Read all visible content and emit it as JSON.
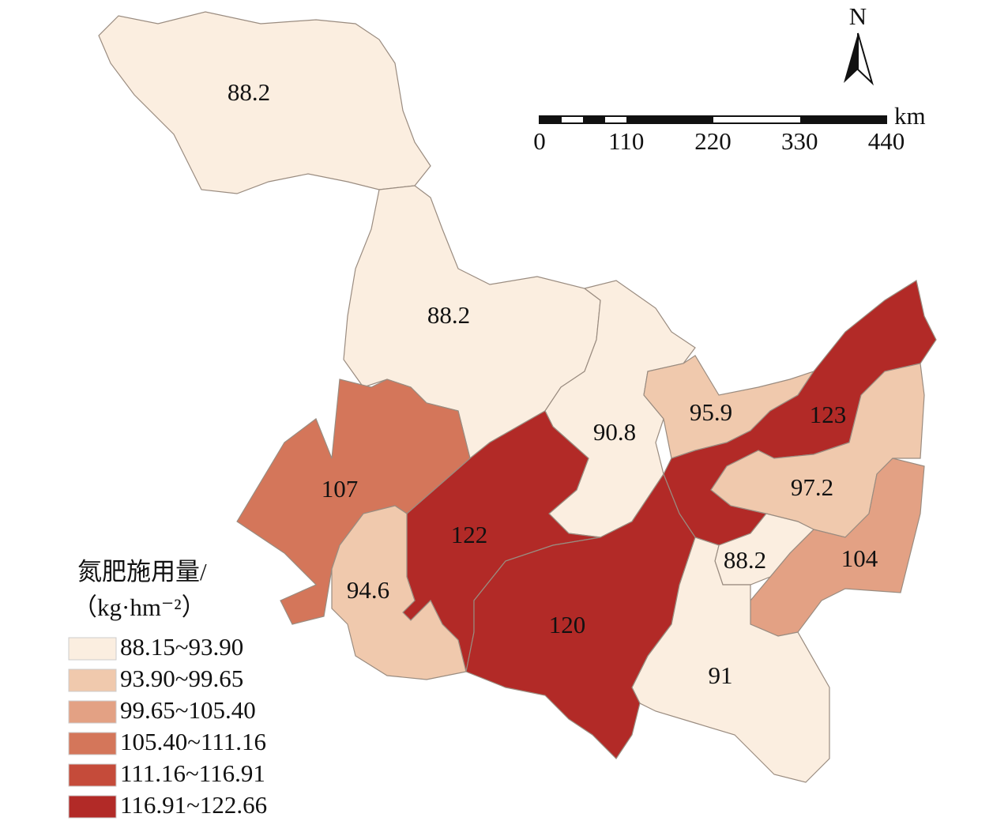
{
  "north_arrow": "N",
  "scale_bar": {
    "unit": "km",
    "ticks": [
      0,
      110,
      220,
      330,
      440
    ]
  },
  "legend": {
    "title": "氮肥施用量/",
    "unit": "（kg·hm⁻²）",
    "items": [
      {
        "label": "88.15~93.90",
        "color": "#fbeee0"
      },
      {
        "label": "93.90~99.65",
        "color": "#f0c9ad"
      },
      {
        "label": "99.65~105.40",
        "color": "#e3a184"
      },
      {
        "label": "105.40~111.16",
        "color": "#d4765a"
      },
      {
        "label": "111.16~116.91",
        "color": "#c54b3a"
      },
      {
        "label": "116.91~122.66",
        "color": "#b22a27"
      }
    ]
  },
  "regions": [
    {
      "label": 88.2,
      "color": "#fbeee0"
    },
    {
      "label": 88.2,
      "color": "#fbeee0"
    },
    {
      "label": 90.8,
      "color": "#fbeee0"
    },
    {
      "label": 95.9,
      "color": "#f0c9ad"
    },
    {
      "label": 123,
      "color": "#b22a27"
    },
    {
      "label": 97.2,
      "color": "#f0c9ad"
    },
    {
      "label": 104,
      "color": "#e3a184"
    },
    {
      "label": 88.2,
      "color": "#fbeee0"
    },
    {
      "label": 91,
      "color": "#fbeee0"
    },
    {
      "label": 122,
      "color": "#b22a27"
    },
    {
      "label": 120,
      "color": "#b22a27"
    },
    {
      "label": 107,
      "color": "#d4765a"
    },
    {
      "label": 94.6,
      "color": "#f0c9ad"
    }
  ]
}
